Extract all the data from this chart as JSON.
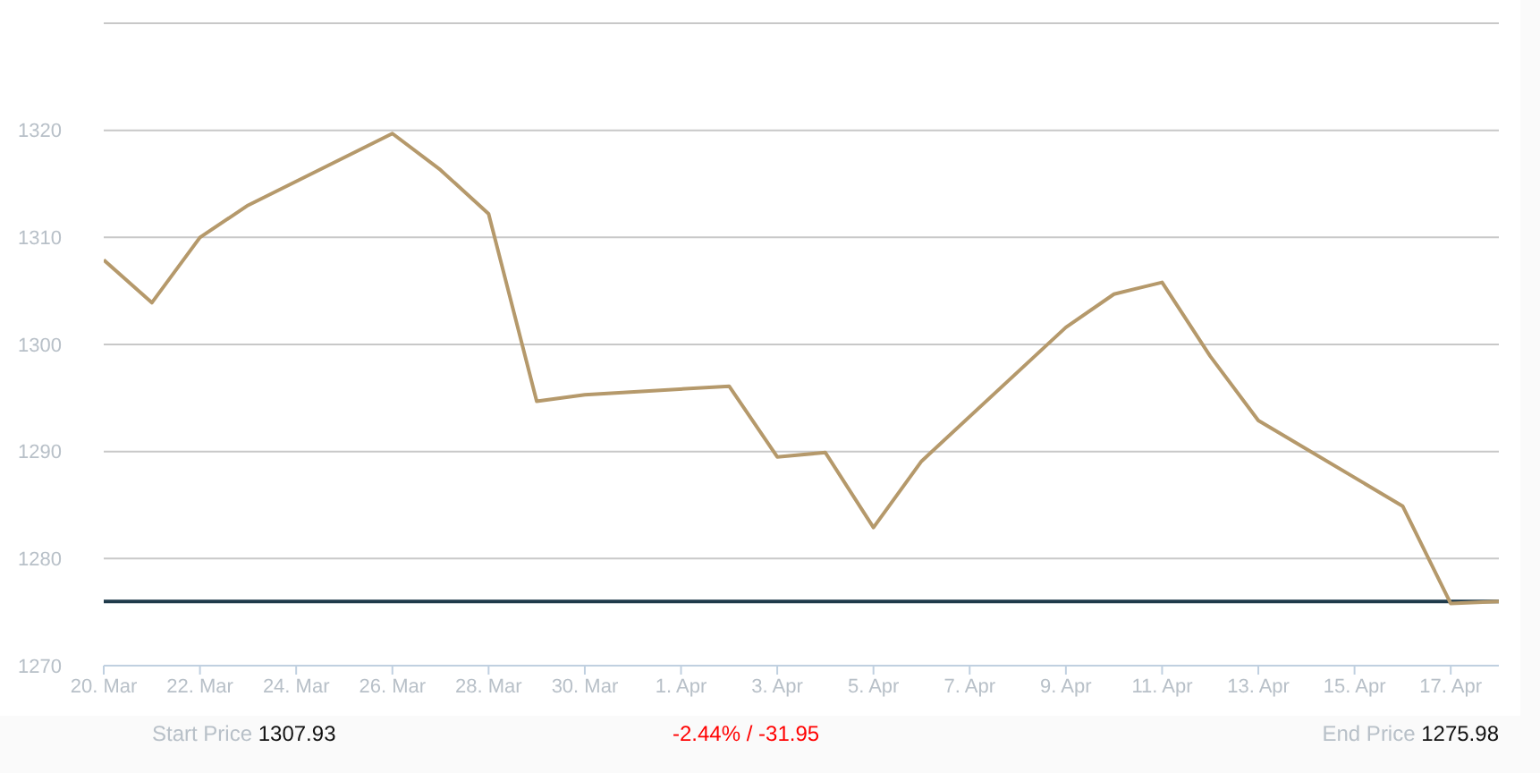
{
  "chart_data": {
    "type": "line",
    "x": [
      "--03-20",
      "--03-21",
      "--03-22",
      "--03-23",
      "--03-26",
      "--03-27",
      "--03-28",
      "--03-29",
      "--03-30",
      "--04-02",
      "--04-03",
      "--04-04",
      "--04-05",
      "--04-06",
      "--04-09",
      "--04-10",
      "--04-11",
      "--04-12",
      "--04-13",
      "--04-16",
      "--04-17",
      "--04-18"
    ],
    "series": [
      {
        "color": "#b5996b",
        "values": [
          1307.9,
          1303.9,
          1310.0,
          1313.0,
          1319.7,
          1316.3,
          1312.2,
          1294.7,
          1295.3,
          1296.1,
          1289.5,
          1289.9,
          1282.9,
          1289.1,
          1301.6,
          1304.7,
          1305.8,
          1298.9,
          1292.9,
          1284.9,
          1275.8,
          1276.0
        ]
      }
    ],
    "xlim": [
      "--03-20",
      "--04-18"
    ],
    "xticks": [
      {
        "value": "--03-20",
        "label": "20. Mar"
      },
      {
        "value": "--03-22",
        "label": "22. Mar"
      },
      {
        "value": "--03-24",
        "label": "24. Mar"
      },
      {
        "value": "--03-26",
        "label": "26. Mar"
      },
      {
        "value": "--03-28",
        "label": "28. Mar"
      },
      {
        "value": "--03-30",
        "label": "30. Mar"
      },
      {
        "value": "--04-01",
        "label": "1. Apr"
      },
      {
        "value": "--04-03",
        "label": "3. Apr"
      },
      {
        "value": "--04-05",
        "label": "5. Apr"
      },
      {
        "value": "--04-07",
        "label": "7. Apr"
      },
      {
        "value": "--04-09",
        "label": "9. Apr"
      },
      {
        "value": "--04-11",
        "label": "11. Apr"
      },
      {
        "value": "--04-13",
        "label": "13. Apr"
      },
      {
        "value": "--04-15",
        "label": "15. Apr"
      },
      {
        "value": "--04-17",
        "label": "17. Apr"
      }
    ],
    "ylim": [
      1270,
      1330
    ],
    "yticks": [
      1270,
      1280,
      1290,
      1300,
      1310,
      1320,
      {
        "value": 1330,
        "label": null
      }
    ],
    "grid": "y",
    "marker": "none",
    "line_style": "solid",
    "ref_lines": [
      {
        "axis": "y",
        "value": 1276.0,
        "color": "#1f3a4a"
      }
    ],
    "annotations": [
      "Start Price 1307.93",
      "-2.44% / -31.95",
      "End Price 1275.98"
    ]
  }
}
